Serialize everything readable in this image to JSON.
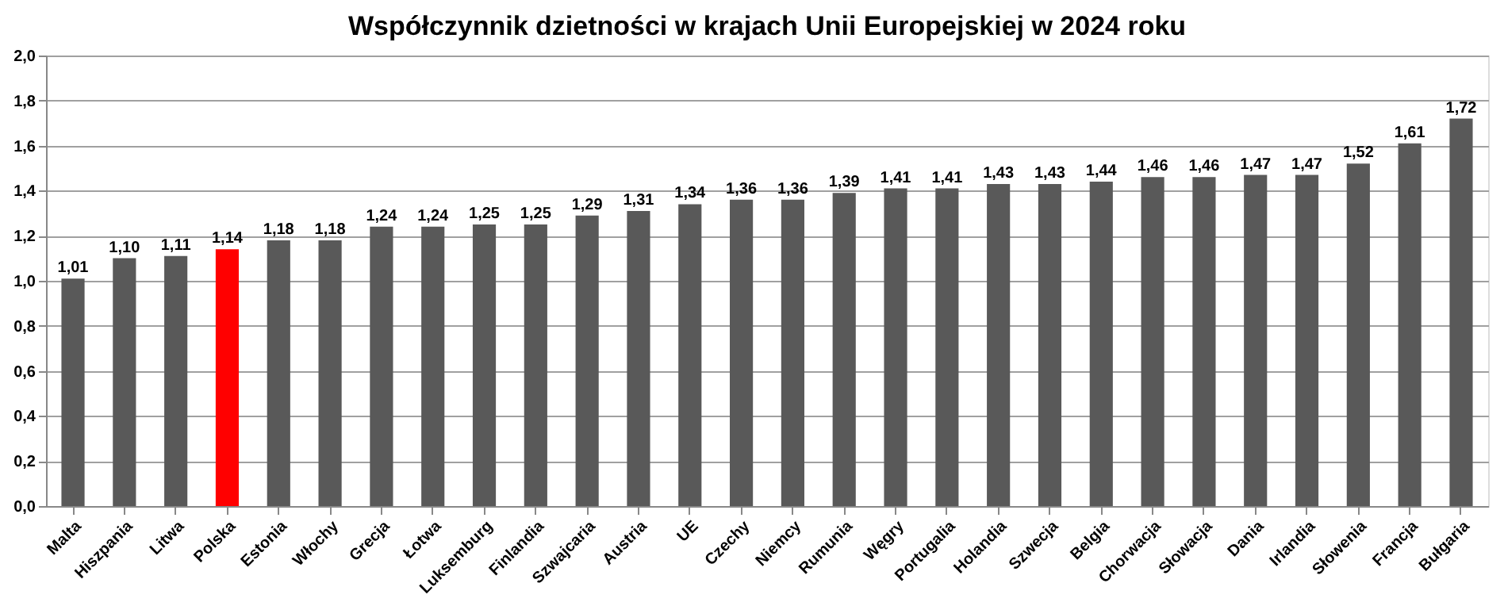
{
  "chart_data": {
    "type": "bar",
    "title": "Współczynnik dzietności w krajach Unii Europejskiej w 2024 roku",
    "categories": [
      "Malta",
      "Hiszpania",
      "Litwa",
      "Polska",
      "Estonia",
      "Włochy",
      "Grecja",
      "Łotwa",
      "Luksemburg",
      "Finlandia",
      "Szwajcaria",
      "Austria",
      "UE",
      "Czechy",
      "Niemcy",
      "Rumunia",
      "Węgry",
      "Portugalia",
      "Holandia",
      "Szwecja",
      "Belgia",
      "Chorwacja",
      "Słowacja",
      "Dania",
      "Irlandia",
      "Słowenia",
      "Francja",
      "Bułgaria"
    ],
    "values": [
      1.01,
      1.1,
      1.11,
      1.14,
      1.18,
      1.18,
      1.24,
      1.24,
      1.25,
      1.25,
      1.29,
      1.31,
      1.34,
      1.36,
      1.36,
      1.39,
      1.41,
      1.41,
      1.43,
      1.43,
      1.44,
      1.46,
      1.46,
      1.47,
      1.47,
      1.52,
      1.61,
      1.72
    ],
    "value_labels": [
      "1,01",
      "1,10",
      "1,11",
      "1,14",
      "1,18",
      "1,18",
      "1,24",
      "1,24",
      "1,25",
      "1,25",
      "1,29",
      "1,31",
      "1,34",
      "1,36",
      "1,36",
      "1,39",
      "1,41",
      "1,41",
      "1,43",
      "1,43",
      "1,44",
      "1,46",
      "1,46",
      "1,47",
      "1,47",
      "1,52",
      "1,61",
      "1,72"
    ],
    "colors": [
      "#595959",
      "#595959",
      "#595959",
      "#ff0000",
      "#595959",
      "#595959",
      "#595959",
      "#595959",
      "#595959",
      "#595959",
      "#595959",
      "#595959",
      "#595959",
      "#595959",
      "#595959",
      "#595959",
      "#595959",
      "#595959",
      "#595959",
      "#595959",
      "#595959",
      "#595959",
      "#595959",
      "#595959",
      "#595959",
      "#595959",
      "#595959",
      "#595959"
    ],
    "ylim": [
      0,
      2.0
    ],
    "yticks": [
      {
        "value": 0,
        "label": "0,0"
      },
      {
        "value": 0.2,
        "label": "0,2"
      },
      {
        "value": 0.4,
        "label": "0,4"
      },
      {
        "value": 0.6,
        "label": "0,6"
      },
      {
        "value": 0.8,
        "label": "0,8"
      },
      {
        "value": 1.0,
        "label": "1,0"
      },
      {
        "value": 1.2,
        "label": "1,2"
      },
      {
        "value": 1.4,
        "label": "1,4"
      },
      {
        "value": 1.6,
        "label": "1,6"
      },
      {
        "value": 1.8,
        "label": "1,8"
      },
      {
        "value": 2.0,
        "label": "2,0"
      }
    ],
    "grid": "y"
  }
}
